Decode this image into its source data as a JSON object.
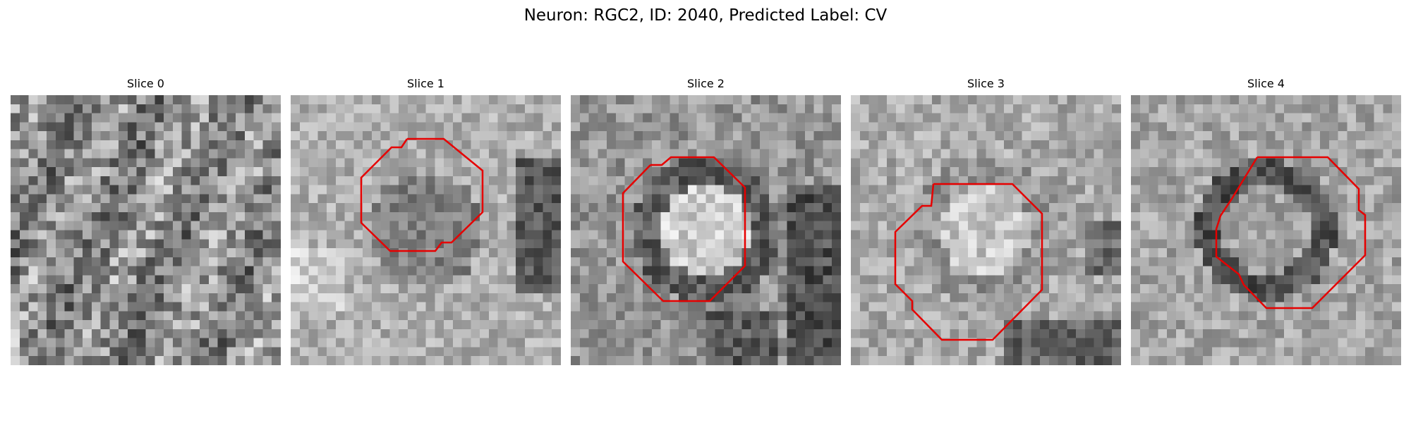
{
  "figure": {
    "title": "Neuron: RGC2, ID: 2040, Predicted Label: CV"
  },
  "overlay_color": "#e60000",
  "panels": [
    {
      "title": "Slice 0",
      "contour": false,
      "pattern": "texture",
      "seed": 11
    },
    {
      "title": "Slice 1",
      "contour": true,
      "pattern": "faint-dark-disk",
      "seed": 23
    },
    {
      "title": "Slice 2",
      "contour": true,
      "pattern": "bright-core-dark-ring",
      "seed": 37
    },
    {
      "title": "Slice 3",
      "contour": true,
      "pattern": "bright-core-faint-ring",
      "seed": 41
    },
    {
      "title": "Slice 4",
      "contour": true,
      "pattern": "dark-ring",
      "seed": 53
    }
  ]
}
